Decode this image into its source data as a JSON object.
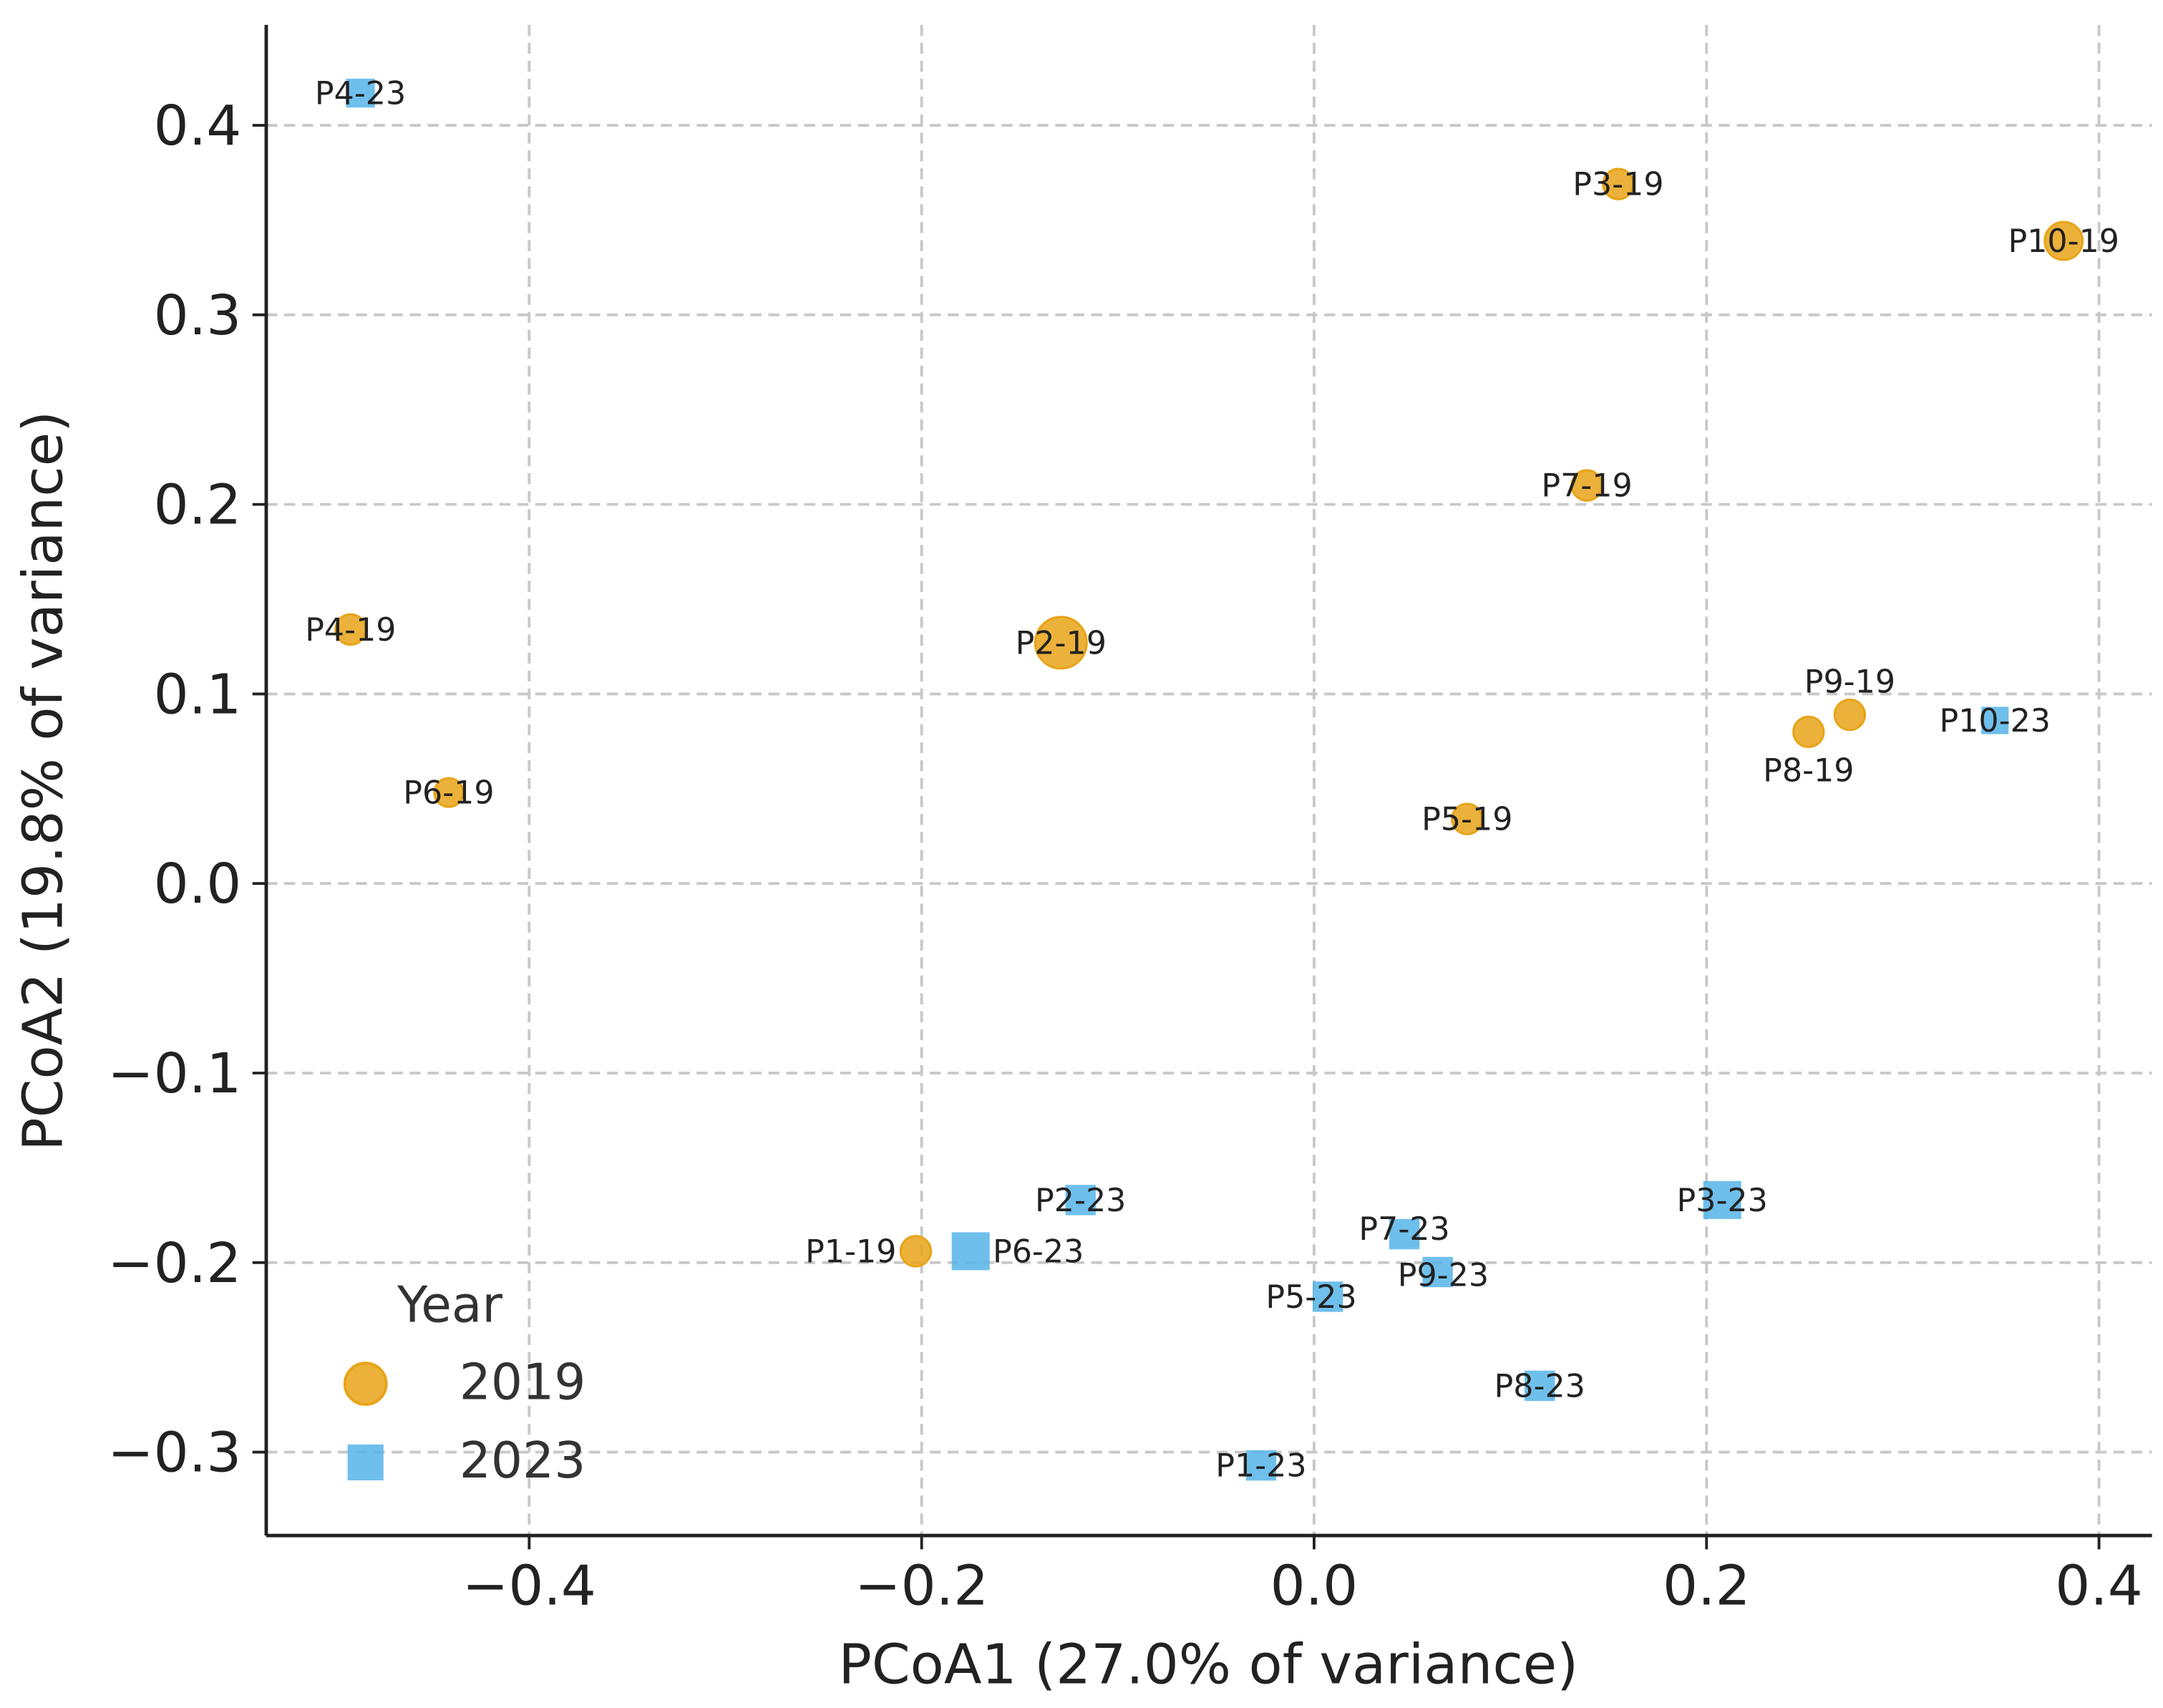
{
  "chart_data": {
    "type": "scatter",
    "title": "",
    "xlabel": "PCoA1 (27.0% of variance)",
    "ylabel": "PCoA2 (19.8% of variance)",
    "xlim": [
      -0.534,
      0.427
    ],
    "ylim": [
      -0.344,
      0.453
    ],
    "xticks": [
      -0.4,
      -0.2,
      0.0,
      0.2,
      0.4
    ],
    "xtick_labels": [
      "−0.4",
      "−0.2",
      "0.0",
      "0.2",
      "0.4"
    ],
    "yticks": [
      -0.3,
      -0.2,
      -0.1,
      0.0,
      0.1,
      0.2,
      0.3,
      0.4
    ],
    "ytick_labels": [
      "−0.3",
      "−0.2",
      "−0.1",
      "0.0",
      "0.1",
      "0.2",
      "0.3",
      "0.4"
    ],
    "grid": true,
    "legend": {
      "title": "Year",
      "placement": "lower-left",
      "entries": [
        {
          "label": "2019",
          "marker": "circle",
          "color": "#E8A317"
        },
        {
          "label": "2023",
          "marker": "square",
          "color": "#56B4E9"
        }
      ]
    },
    "series": [
      {
        "name": "2019",
        "marker": "circle",
        "color": "#E8A317",
        "points": [
          {
            "label": "P1-19",
            "x": -0.203,
            "y": -0.194,
            "size": 1.0
          },
          {
            "label": "P2-19",
            "x": -0.129,
            "y": 0.127,
            "size": 1.7
          },
          {
            "label": "P3-19",
            "x": 0.155,
            "y": 0.369,
            "size": 1.0
          },
          {
            "label": "P4-19",
            "x": -0.491,
            "y": 0.134,
            "size": 1.0
          },
          {
            "label": "P5-19",
            "x": 0.078,
            "y": 0.034,
            "size": 1.0
          },
          {
            "label": "P6-19",
            "x": -0.441,
            "y": 0.048,
            "size": 0.95
          },
          {
            "label": "P7-19",
            "x": 0.139,
            "y": 0.21,
            "size": 1.0
          },
          {
            "label": "P8-19",
            "x": 0.252,
            "y": 0.08,
            "size": 1.0
          },
          {
            "label": "P9-19",
            "x": 0.273,
            "y": 0.089,
            "size": 1.0
          },
          {
            "label": "P10-19",
            "x": 0.382,
            "y": 0.339,
            "size": 1.25
          }
        ]
      },
      {
        "name": "2023",
        "marker": "square",
        "color": "#56B4E9",
        "points": [
          {
            "label": "P1-23",
            "x": -0.027,
            "y": -0.307,
            "size": 1.0
          },
          {
            "label": "P2-23",
            "x": -0.119,
            "y": -0.167,
            "size": 1.0
          },
          {
            "label": "P3-23",
            "x": 0.208,
            "y": -0.167,
            "size": 1.25
          },
          {
            "label": "P4-23",
            "x": -0.486,
            "y": 0.417,
            "size": 0.95
          },
          {
            "label": "P5-23",
            "x": 0.007,
            "y": -0.218,
            "size": 1.0
          },
          {
            "label": "P6-23",
            "x": -0.175,
            "y": -0.194,
            "size": 1.25
          },
          {
            "label": "P7-23",
            "x": 0.046,
            "y": -0.185,
            "size": 1.0
          },
          {
            "label": "P8-23",
            "x": 0.115,
            "y": -0.265,
            "size": 1.0
          },
          {
            "label": "P9-23",
            "x": 0.063,
            "y": -0.205,
            "size": 1.0
          },
          {
            "label": "P10-23",
            "x": 0.347,
            "y": 0.086,
            "size": 0.9
          }
        ]
      }
    ]
  }
}
